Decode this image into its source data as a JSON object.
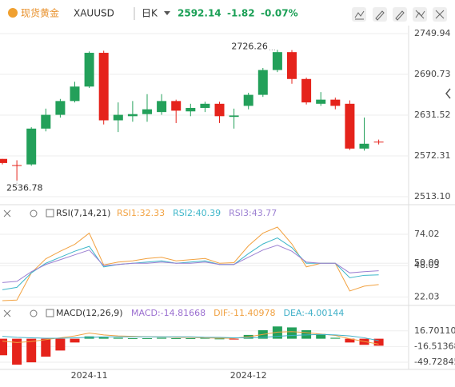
{
  "header": {
    "name": "现货黄金",
    "symbol": "XAUUSD",
    "period": "日K",
    "price": "2592.14",
    "change": "-1.82",
    "change_pct": "-0.07%"
  },
  "chart_data": [
    {
      "type": "candlestick",
      "up_color": "#23a05a",
      "down_color": "#e5231b",
      "open": [
        2568,
        2559,
        2560,
        2612,
        2632,
        2652,
        2673,
        2722,
        2624,
        2630,
        2633,
        2636,
        2652,
        2637,
        2642,
        2648,
        2629,
        2645,
        2661,
        2697,
        2723,
        2684,
        2648,
        2654,
        2648,
        2583,
        2593
      ],
      "high": [
        2568,
        2566,
        2614,
        2641,
        2655,
        2680,
        2724,
        2725,
        2650,
        2652,
        2662,
        2662,
        2654,
        2648,
        2651,
        2651,
        2641,
        2664,
        2700,
        2726.26,
        2726,
        2686,
        2665,
        2657,
        2653,
        2628,
        2596
      ],
      "low": [
        2560,
        2536.78,
        2558,
        2608,
        2628,
        2650,
        2671,
        2618,
        2607,
        2622,
        2622,
        2632,
        2620,
        2630,
        2636,
        2620,
        2612,
        2640,
        2658,
        2694,
        2677,
        2647,
        2645,
        2640,
        2581,
        2580,
        2589
      ],
      "close": [
        2562,
        2558,
        2612,
        2632,
        2652,
        2673,
        2722,
        2624,
        2632,
        2633,
        2640,
        2652,
        2638,
        2642,
        2648,
        2630,
        2631,
        2661,
        2697,
        2723,
        2684,
        2650,
        2654,
        2645,
        2583,
        2590,
        2592.14
      ],
      "max_marker": 2726.26,
      "min_marker": 2536.78,
      "ylim": [
        2502.7,
        2761.5
      ],
      "yticks": [
        2749.94,
        2690.73,
        2631.52,
        2572.31,
        {
          "value": 2513.1,
          "label": "2513.10"
        }
      ],
      "grid": true
    },
    {
      "type": "line",
      "title": "RSI(7,14,21)",
      "series": [
        {
          "name": "RSI1:32.33",
          "color": "#f2a241",
          "values": [
            19,
            19.5,
            42,
            53.7,
            60,
            65.7,
            75,
            48.6,
            51,
            52,
            54,
            55,
            52,
            53,
            54,
            50,
            50.5,
            64.5,
            75,
            80,
            66,
            47,
            50,
            50,
            27,
            31,
            32.33
          ]
        },
        {
          "name": "RSI2:40.39",
          "color": "#3db6c9",
          "values": [
            28,
            30,
            42,
            50,
            55,
            60,
            64,
            47,
            49,
            50,
            51,
            52,
            50,
            51,
            52,
            49,
            49,
            58,
            66,
            71,
            63,
            50,
            50,
            50,
            38,
            40,
            40.39
          ]
        },
        {
          "name": "RSI3:43.77",
          "color": "#9c80d2",
          "values": [
            34,
            35,
            43,
            49,
            53,
            57,
            61,
            48,
            49,
            50,
            50,
            51,
            50,
            50,
            51,
            49,
            49,
            55,
            61,
            65,
            60,
            51,
            50,
            50,
            42,
            43,
            43.77
          ]
        }
      ],
      "ylim": [
        15,
        84
      ],
      "yticks": [
        74.02,
        {
          "value": 50,
          "label": "50.00"
        },
        48.03,
        22.03
      ],
      "grid": true
    },
    {
      "type": "macd",
      "title": "MACD(12,26,9)",
      "up_color": "#23a05a",
      "down_color": "#e5231b",
      "categories": [
        null,
        null,
        null,
        null,
        null,
        null,
        "2024-11",
        null,
        null,
        null,
        null,
        null,
        null,
        null,
        null,
        null,
        null,
        "2024-12",
        null,
        null,
        null,
        null,
        null,
        null,
        null,
        null,
        null
      ],
      "series": [
        {
          "name": "MACD:-14.81668",
          "color": "#9b6fd0",
          "kind": "bar",
          "values": [
            -35,
            -55,
            -50,
            -38,
            -25,
            -8,
            5,
            3,
            2,
            1,
            1,
            2,
            1,
            1,
            2,
            0.5,
            -1,
            8,
            18,
            26,
            24,
            18,
            10,
            2,
            -8,
            -13,
            -14.81668
          ]
        },
        {
          "name": "DIF:-11.40978",
          "color": "#f0a040",
          "kind": "line",
          "values": [
            -5,
            -8,
            -6,
            -2,
            2,
            6,
            12,
            8,
            6,
            5,
            4,
            4,
            3,
            3,
            2,
            1,
            1,
            4,
            9,
            14,
            15,
            13,
            10,
            7,
            0,
            -6,
            -11.40978
          ]
        },
        {
          "name": "DEA:-4.00144",
          "color": "#40b0c8",
          "kind": "line",
          "values": [
            5,
            3,
            2,
            1,
            1,
            2,
            3,
            4,
            4,
            4,
            4,
            4,
            4,
            4,
            3,
            3,
            2,
            2,
            3,
            5,
            7,
            8,
            9,
            8,
            6,
            2,
            -4.00144
          ]
        }
      ],
      "ylim": [
        -65,
        40
      ],
      "yticks": [
        {
          "value": 16.7011,
          "label": "16.70110"
        },
        -16.51368,
        -49.72845
      ],
      "grid": true
    }
  ]
}
